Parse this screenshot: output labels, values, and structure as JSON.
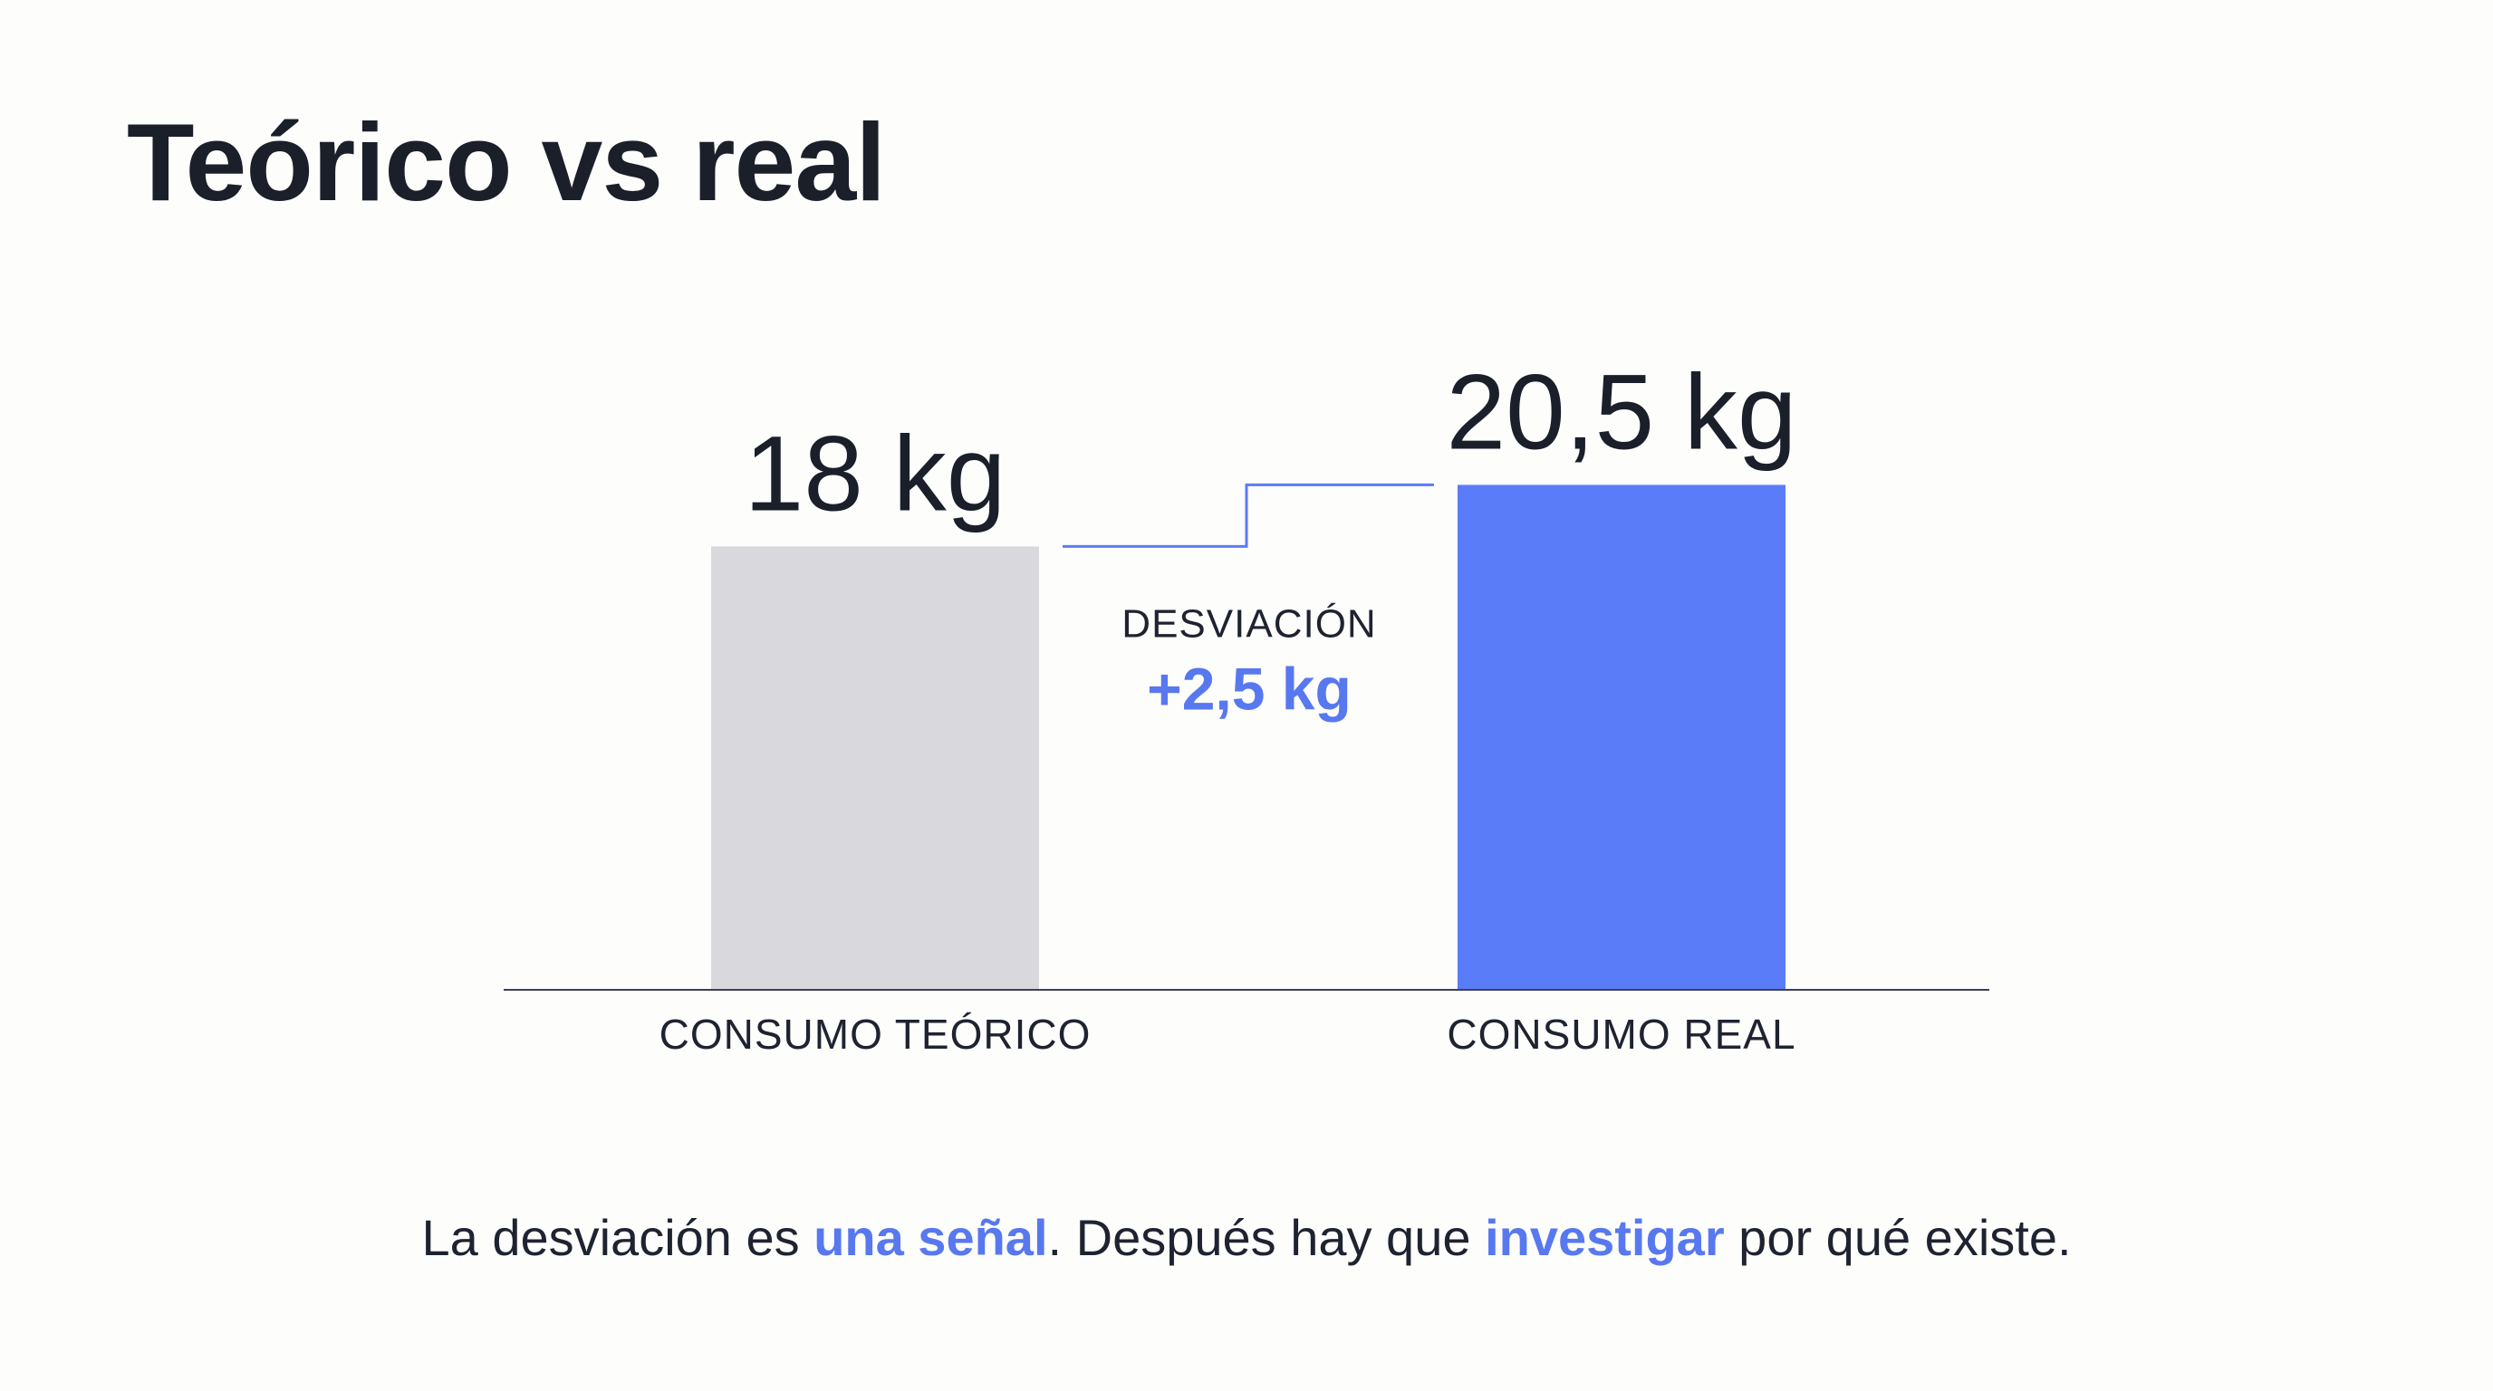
{
  "title": "Teórico vs real",
  "chart_data": {
    "type": "bar",
    "categories": [
      "CONSUMO TEÓRICO",
      "CONSUMO REAL"
    ],
    "values": [
      18,
      20.5
    ],
    "value_labels": [
      "18 kg",
      "20,5 kg"
    ],
    "unit": "kg",
    "bar_colors": [
      "#d9d9dd",
      "#5b7cf8"
    ],
    "grid": false,
    "deviation": {
      "label": "DESVIACIÓN",
      "value_text": "+2,5 kg",
      "value": 2.5,
      "color": "#5878f0"
    }
  },
  "caption": {
    "part1": "La desviación es ",
    "highlight1": "una señal",
    "part2": ". Después hay que ",
    "highlight2": "investigar",
    "part3": " por qué existe."
  }
}
